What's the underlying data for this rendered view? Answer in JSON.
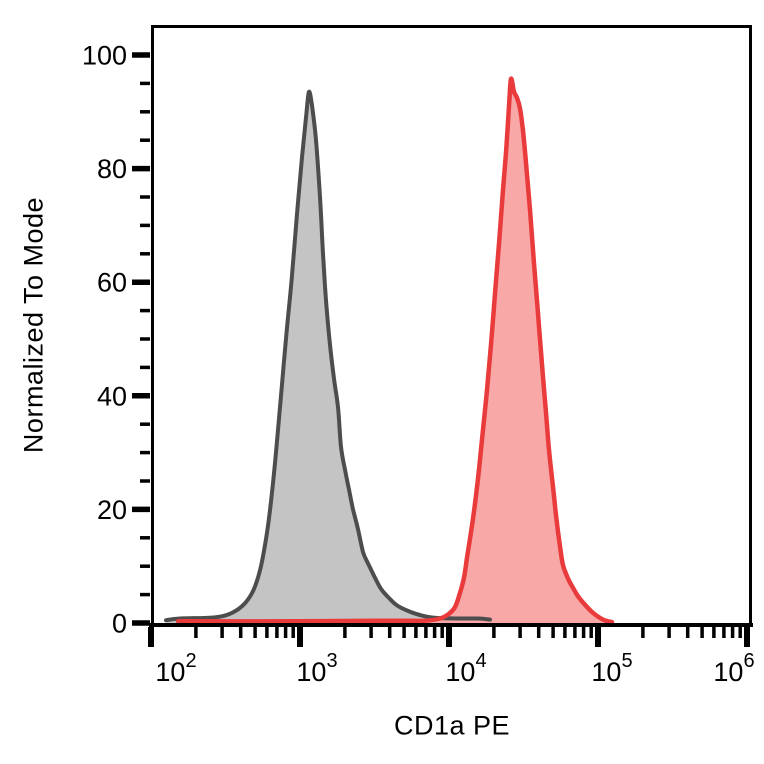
{
  "figure": {
    "background_color": "#ffffff",
    "frame_color": "#000000"
  },
  "chart_data": {
    "type": "area",
    "subtype": "flow-cytometry-histogram-overlay",
    "title": "",
    "xlabel": "CD1a PE",
    "ylabel": "Normalized To Mode",
    "x_scale": "log10",
    "xlim": [
      100,
      1080000
    ],
    "ylim": [
      0,
      105
    ],
    "grid": false,
    "legend": false,
    "frame": true,
    "x_major_ticks": [
      {
        "mantissa": "10",
        "exponent": "2",
        "value": 100
      },
      {
        "mantissa": "10",
        "exponent": "3",
        "value": 1000
      },
      {
        "mantissa": "10",
        "exponent": "4",
        "value": 10000
      },
      {
        "mantissa": "10",
        "exponent": "5",
        "value": 100000
      },
      {
        "mantissa": "10",
        "exponent": "6",
        "value": 1000000
      }
    ],
    "x_minor_tick_multiples": [
      2,
      3,
      4,
      5,
      6,
      7,
      8,
      9
    ],
    "y_major_ticks": [
      0,
      20,
      40,
      60,
      80,
      100
    ],
    "y_minor_tick_step": 5,
    "series": [
      {
        "name": "gray",
        "outline_color": "#4d4d4d",
        "fill_color": "#c4c4c4",
        "outline_width": 4,
        "points": [
          [
            126,
            0.5
          ],
          [
            157,
            0.8
          ],
          [
            269,
            1
          ],
          [
            350,
            1.8
          ],
          [
            428,
            3.5
          ],
          [
            491,
            6
          ],
          [
            547,
            10
          ],
          [
            601,
            16
          ],
          [
            649,
            23
          ],
          [
            701,
            32
          ],
          [
            757,
            42
          ],
          [
            818,
            52
          ],
          [
            883,
            61
          ],
          [
            955,
            72
          ],
          [
            1031,
            82
          ],
          [
            1097,
            89
          ],
          [
            1148,
            93.5
          ],
          [
            1205,
            91
          ],
          [
            1280,
            85
          ],
          [
            1362,
            75
          ],
          [
            1426,
            65
          ],
          [
            1493,
            57
          ],
          [
            1589,
            49
          ],
          [
            1691,
            43
          ],
          [
            1799,
            38
          ],
          [
            1884,
            31
          ],
          [
            2004,
            27
          ],
          [
            2132,
            23.5
          ],
          [
            2270,
            20
          ],
          [
            2451,
            16.5
          ],
          [
            2648,
            12.5
          ],
          [
            2859,
            10.5
          ],
          [
            3184,
            8
          ],
          [
            3499,
            6
          ],
          [
            3954,
            4.4
          ],
          [
            4477,
            3.1
          ],
          [
            5224,
            2.2
          ],
          [
            6383,
            1.4
          ],
          [
            7816,
            0.95
          ],
          [
            10965,
            0.8
          ],
          [
            15668,
            0.8
          ],
          [
            18836,
            0.6
          ]
        ]
      },
      {
        "name": "red",
        "outline_color": "#e93b3b",
        "fill_color": "#f9a8a8",
        "outline_width": 4.5,
        "points": [
          [
            152,
            0.3
          ],
          [
            1000,
            0.3
          ],
          [
            4018,
            0.4
          ],
          [
            6902,
            0.4
          ],
          [
            8710,
            0.8
          ],
          [
            9847,
            1.5
          ],
          [
            10965,
            2.8
          ],
          [
            11858,
            5.3
          ],
          [
            12618,
            8
          ],
          [
            13212,
            11.5
          ],
          [
            14060,
            16
          ],
          [
            14939,
            21
          ],
          [
            15896,
            27
          ],
          [
            16904,
            34
          ],
          [
            17989,
            41
          ],
          [
            19143,
            49
          ],
          [
            20370,
            58
          ],
          [
            21677,
            67
          ],
          [
            23014,
            76
          ],
          [
            24155,
            83
          ],
          [
            25293,
            91
          ],
          [
            26062,
            95.8
          ],
          [
            27290,
            93.5
          ],
          [
            28577,
            92.5
          ],
          [
            29992,
            90.5
          ],
          [
            31405,
            86.5
          ],
          [
            32885,
            81
          ],
          [
            34995,
            72.5
          ],
          [
            37154,
            63.5
          ],
          [
            39537,
            54.5
          ],
          [
            42073,
            45.5
          ],
          [
            44771,
            37
          ],
          [
            46881,
            30.5
          ],
          [
            49889,
            24
          ],
          [
            52240,
            19
          ],
          [
            55590,
            13.5
          ],
          [
            58210,
            10.2
          ],
          [
            62950,
            7.8
          ],
          [
            67920,
            6.2
          ],
          [
            73450,
            4.7
          ],
          [
            81850,
            3.2
          ],
          [
            92470,
            1.8
          ],
          [
            108100,
            0.6
          ],
          [
            124200,
            0.15
          ]
        ]
      }
    ]
  }
}
